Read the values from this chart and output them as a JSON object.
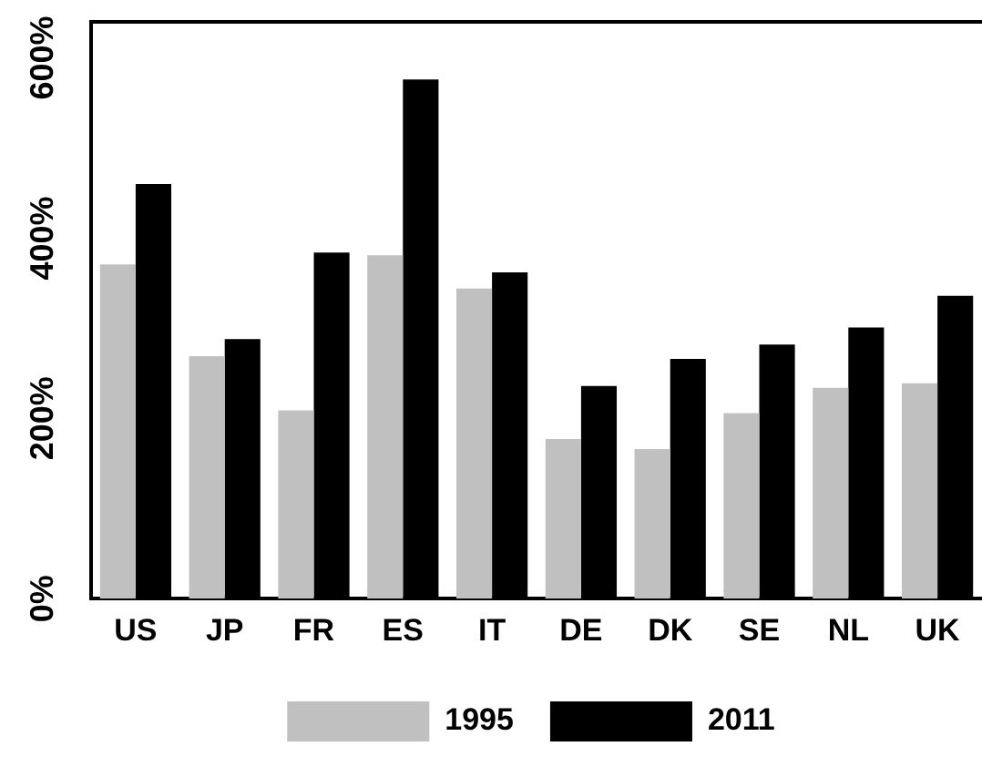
{
  "chart_data": {
    "type": "bar",
    "categories": [
      "US",
      "JP",
      "FR",
      "ES",
      "IT",
      "DE",
      "DK",
      "SE",
      "NL",
      "UK"
    ],
    "series": [
      {
        "name": "1995",
        "color": "#c0c0c0",
        "values": [
          371,
          269,
          209,
          381,
          344,
          177,
          166,
          206,
          234,
          239
        ]
      },
      {
        "name": "2011",
        "color": "#000000",
        "values": [
          460,
          288,
          384,
          576,
          362,
          236,
          266,
          282,
          301,
          336
        ]
      }
    ],
    "ylim": [
      0,
      640
    ],
    "yticks": [
      {
        "value": 0,
        "label": "0%"
      },
      {
        "value": 200,
        "label": "200%"
      },
      {
        "value": 400,
        "label": "400%"
      },
      {
        "value": 600,
        "label": "600%"
      }
    ],
    "grid": false,
    "legend": "bottom"
  }
}
